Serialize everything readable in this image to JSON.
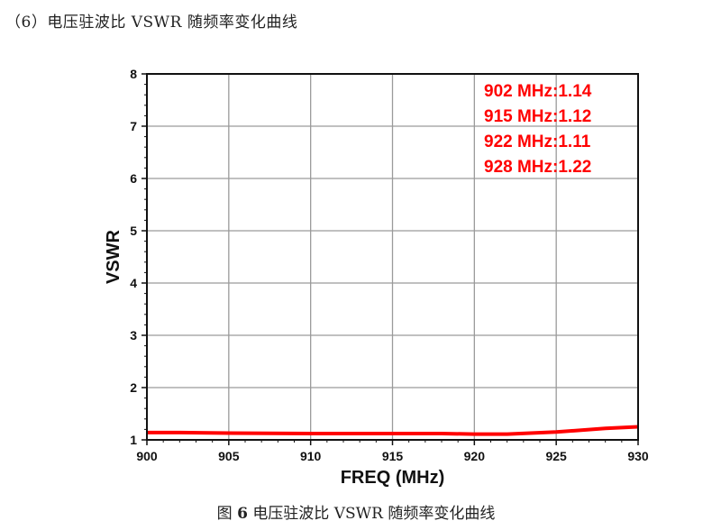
{
  "heading": "（6）电压驻波比 VSWR 随频率变化曲线",
  "caption": {
    "prefix": "图",
    "number": "6",
    "text": "电压驻波比 VSWR 随频率变化曲线"
  },
  "chart_data": {
    "type": "line",
    "xlabel": "FREQ (MHz)",
    "ylabel": "VSWR",
    "xlim": [
      900,
      930
    ],
    "ylim": [
      1,
      8
    ],
    "xticks": [
      900,
      905,
      910,
      915,
      920,
      925,
      930
    ],
    "yticks": [
      1,
      2,
      3,
      4,
      5,
      6,
      7,
      8
    ],
    "grid": true,
    "line_color": "#ff0000",
    "series": [
      {
        "x": [
          900,
          902,
          905,
          910,
          915,
          918,
          920,
          922,
          925,
          928,
          930
        ],
        "y": [
          1.14,
          1.14,
          1.13,
          1.12,
          1.12,
          1.12,
          1.11,
          1.11,
          1.15,
          1.22,
          1.25
        ]
      }
    ],
    "annotations": [
      "902 MHz:1.14",
      "915 MHz:1.12",
      "922 MHz:1.11",
      "928 MHz:1.22"
    ]
  }
}
